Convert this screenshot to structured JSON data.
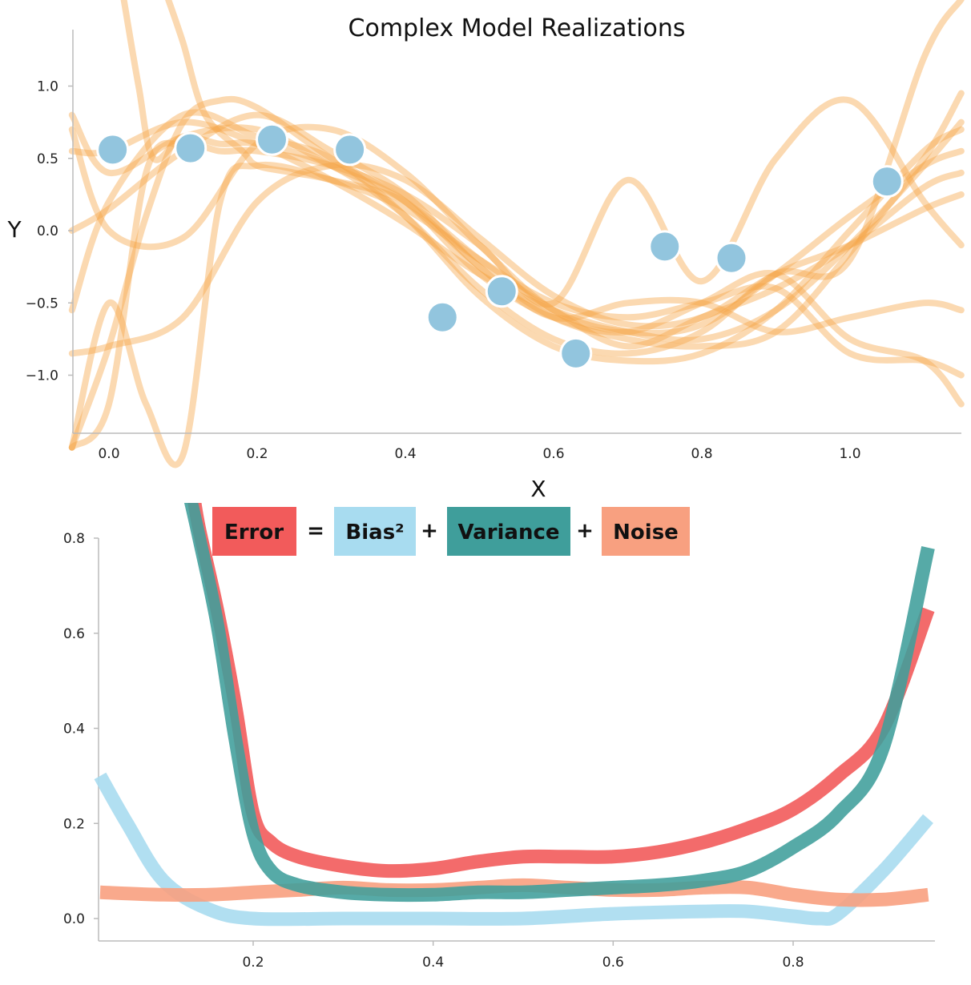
{
  "chart_data": [
    {
      "type": "line",
      "title": "Complex Model Realizations",
      "xlabel": "X",
      "ylabel": "Y",
      "xlim": [
        -0.05,
        1.15
      ],
      "ylim": [
        -1.4,
        1.4
      ],
      "x_ticks": [
        "0.0",
        "0.2",
        "0.4",
        "0.6",
        "0.8",
        "1.0"
      ],
      "y_ticks": [
        "1.0",
        "0.5",
        "0.0",
        "−0.5",
        "−1.0"
      ],
      "realization_color": "#f5a445",
      "point_color": "#92c5de",
      "series": [
        {
          "x": [
            -0.05,
            0.0,
            0.1,
            0.2,
            0.3,
            0.4,
            0.5,
            0.6,
            0.7,
            0.8,
            0.9,
            1.0,
            1.1,
            1.15
          ],
          "y": [
            0.55,
            0.55,
            0.75,
            0.6,
            0.35,
            0.05,
            -0.3,
            -0.55,
            -0.7,
            -0.75,
            -0.55,
            -0.1,
            0.45,
            0.75
          ]
        },
        {
          "x": [
            -0.05,
            0.0,
            0.1,
            0.2,
            0.3,
            0.4,
            0.5,
            0.6,
            0.7,
            0.8,
            0.9,
            1.0,
            1.1,
            1.15
          ],
          "y": [
            0.8,
            0.4,
            0.65,
            0.7,
            0.45,
            0.2,
            -0.25,
            -0.6,
            -0.75,
            -0.8,
            -0.7,
            -0.15,
            0.5,
            0.95
          ]
        },
        {
          "x": [
            -0.05,
            0.0,
            0.1,
            0.2,
            0.3,
            0.4,
            0.5,
            0.6,
            0.7,
            0.8,
            0.9,
            1.0,
            1.1,
            1.15
          ],
          "y": [
            0.0,
            0.15,
            0.55,
            0.8,
            0.55,
            0.25,
            -0.25,
            -0.6,
            -0.5,
            -0.5,
            -0.7,
            -0.6,
            -0.5,
            -0.55
          ]
        },
        {
          "x": [
            -0.05,
            0.0,
            0.1,
            0.2,
            0.3,
            0.4,
            0.5,
            0.6,
            0.7,
            0.8,
            0.9,
            1.0,
            1.1,
            1.15
          ],
          "y": [
            -0.55,
            0.2,
            0.8,
            0.65,
            0.5,
            0.1,
            -0.45,
            -0.8,
            -0.9,
            -0.85,
            -0.55,
            0.0,
            0.55,
            0.7
          ]
        },
        {
          "x": [
            -0.05,
            0.0,
            0.1,
            0.2,
            0.3,
            0.4,
            0.5,
            0.6,
            0.7,
            0.8,
            0.9,
            1.0,
            1.1,
            1.15
          ],
          "y": [
            -0.85,
            -0.8,
            -0.6,
            0.2,
            0.45,
            0.35,
            -0.05,
            -0.45,
            -0.65,
            -0.6,
            -0.3,
            -0.1,
            0.15,
            0.25
          ]
        },
        {
          "x": [
            -0.05,
            0.0,
            0.1,
            0.2,
            0.3,
            0.4,
            0.5,
            0.6,
            0.7,
            0.8,
            0.9,
            1.0,
            1.1,
            1.15
          ],
          "y": [
            0.7,
            0.0,
            -0.05,
            0.6,
            0.7,
            0.4,
            -0.1,
            -0.55,
            -0.7,
            -0.65,
            -0.3,
            0.1,
            0.45,
            0.55
          ]
        },
        {
          "x": [
            -0.05,
            0.0,
            0.05,
            0.1,
            0.15,
            0.2,
            0.3,
            0.4,
            0.5,
            0.6,
            0.7,
            0.8,
            0.9,
            1.0,
            1.1,
            1.15
          ],
          "y": [
            -1.5,
            -0.8,
            0.1,
            0.75,
            0.9,
            0.85,
            0.5,
            0.2,
            -0.3,
            -0.6,
            -0.7,
            -0.5,
            -0.3,
            -0.75,
            -0.9,
            -1.2
          ]
        },
        {
          "x": [
            -0.05,
            0.0,
            0.05,
            0.1,
            0.15,
            0.2,
            0.3,
            0.4,
            0.5,
            0.6,
            0.7,
            0.8,
            0.9,
            1.0,
            1.1,
            1.15
          ],
          "y": [
            -1.5,
            -1.2,
            0.4,
            0.6,
            0.55,
            0.55,
            0.45,
            0.25,
            -0.1,
            -0.5,
            0.35,
            -0.35,
            0.5,
            0.9,
            0.2,
            -0.1
          ]
        },
        {
          "x": [
            -0.05,
            0.0,
            0.05,
            0.1,
            0.15,
            0.2,
            0.3,
            0.4,
            0.5,
            0.6,
            0.7,
            0.8,
            0.9,
            1.0,
            1.1,
            1.15
          ],
          "y": [
            -1.5,
            -0.5,
            -1.2,
            -1.55,
            0.2,
            0.45,
            0.35,
            0.15,
            -0.2,
            -0.5,
            -0.6,
            -0.5,
            -0.4,
            -0.85,
            -0.9,
            -1.0
          ]
        },
        {
          "x": [
            0.02,
            0.04,
            0.06,
            0.1,
            0.15,
            0.2,
            0.3,
            0.4,
            0.5,
            0.6,
            0.7,
            0.8,
            0.9,
            1.0,
            1.1,
            1.15
          ],
          "y": [
            1.6,
            1.0,
            0.5,
            0.65,
            0.6,
            0.6,
            0.45,
            0.1,
            -0.4,
            -0.75,
            -0.85,
            -0.7,
            -0.3,
            -0.2,
            1.2,
            1.6
          ]
        },
        {
          "x": [
            0.08,
            0.1,
            0.13,
            0.18,
            0.2,
            0.25,
            0.3,
            0.4,
            0.5,
            0.6,
            0.7,
            0.8,
            0.9,
            1.0,
            1.1,
            1.15
          ],
          "y": [
            1.6,
            1.3,
            0.8,
            0.55,
            0.45,
            0.4,
            0.35,
            0.2,
            -0.2,
            -0.55,
            -0.8,
            -0.6,
            -0.4,
            -0.1,
            0.3,
            0.4
          ]
        }
      ],
      "points": {
        "x": [
          0.005,
          0.11,
          0.22,
          0.325,
          0.45,
          0.53,
          0.63,
          0.75,
          0.84,
          1.05
        ],
        "y": [
          0.56,
          0.57,
          0.63,
          0.56,
          -0.6,
          -0.42,
          -0.85,
          -0.11,
          -0.19,
          0.34
        ]
      }
    },
    {
      "type": "line",
      "title": "",
      "xlabel": "",
      "ylabel": "",
      "xlim": [
        0.03,
        0.95
      ],
      "ylim": [
        -0.05,
        0.83
      ],
      "x_ticks": [
        "0.2",
        "0.4",
        "0.6",
        "0.8"
      ],
      "y_ticks": [
        "0.8",
        "0.6",
        "0.4",
        "0.2",
        "0.0"
      ],
      "legend": {
        "placement": "top",
        "items": [
          {
            "label": "Error",
            "color": "#f25b5b"
          },
          {
            "label": "Bias²",
            "color": "#a8dcf0"
          },
          {
            "label": "Variance",
            "color": "#3f9e9b"
          },
          {
            "label": "Noise",
            "color": "#f8a080"
          }
        ],
        "operators": [
          "=",
          "+",
          "+"
        ]
      },
      "series": [
        {
          "name": "Error",
          "color": "#f25b5b",
          "x": [
            0.133,
            0.14,
            0.16,
            0.18,
            0.2,
            0.22,
            0.25,
            0.3,
            0.35,
            0.4,
            0.45,
            0.5,
            0.55,
            0.6,
            0.65,
            0.7,
            0.75,
            0.8,
            0.85,
            0.9,
            0.95
          ],
          "y": [
            0.9,
            0.82,
            0.65,
            0.45,
            0.22,
            0.16,
            0.13,
            0.11,
            0.1,
            0.105,
            0.12,
            0.13,
            0.13,
            0.13,
            0.14,
            0.16,
            0.19,
            0.23,
            0.3,
            0.4,
            0.65
          ]
        },
        {
          "name": "Bias²",
          "color": "#a8dcf0",
          "x": [
            0.03,
            0.06,
            0.1,
            0.15,
            0.2,
            0.3,
            0.4,
            0.5,
            0.6,
            0.7,
            0.75,
            0.8,
            0.83,
            0.85,
            0.9,
            0.95
          ],
          "y": [
            0.3,
            0.2,
            0.08,
            0.02,
            0.0,
            0.0,
            0.0,
            0.0,
            0.01,
            0.015,
            0.015,
            0.005,
            0.0,
            0.01,
            0.1,
            0.21
          ]
        },
        {
          "name": "Variance",
          "color": "#3f9e9b",
          "x": [
            0.128,
            0.14,
            0.16,
            0.18,
            0.2,
            0.22,
            0.25,
            0.3,
            0.35,
            0.4,
            0.45,
            0.5,
            0.55,
            0.6,
            0.65,
            0.7,
            0.75,
            0.8,
            0.85,
            0.9,
            0.95
          ],
          "y": [
            0.9,
            0.8,
            0.62,
            0.38,
            0.18,
            0.1,
            0.07,
            0.055,
            0.05,
            0.05,
            0.055,
            0.055,
            0.06,
            0.065,
            0.07,
            0.08,
            0.1,
            0.15,
            0.22,
            0.36,
            0.78
          ]
        },
        {
          "name": "Noise",
          "color": "#f8a080",
          "x": [
            0.03,
            0.1,
            0.15,
            0.2,
            0.25,
            0.3,
            0.35,
            0.4,
            0.45,
            0.5,
            0.55,
            0.6,
            0.65,
            0.7,
            0.75,
            0.8,
            0.85,
            0.9,
            0.95
          ],
          "y": [
            0.055,
            0.05,
            0.05,
            0.055,
            0.06,
            0.065,
            0.06,
            0.06,
            0.065,
            0.07,
            0.065,
            0.06,
            0.06,
            0.065,
            0.065,
            0.05,
            0.04,
            0.04,
            0.05
          ]
        }
      ]
    }
  ]
}
